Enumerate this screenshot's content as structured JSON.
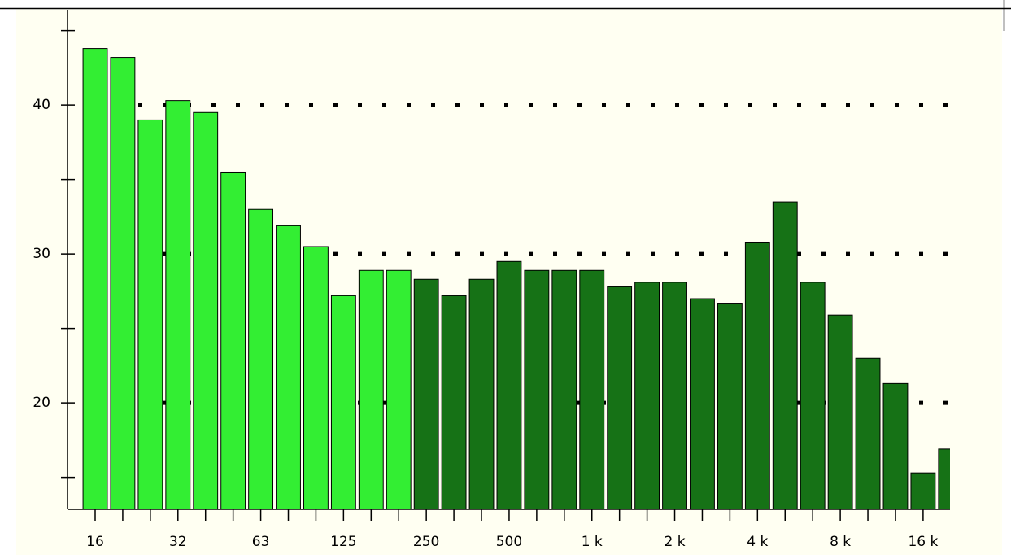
{
  "chart_data": {
    "type": "bar",
    "categories": [
      "16",
      null,
      null,
      "32",
      null,
      null,
      "63",
      null,
      null,
      "125",
      null,
      null,
      "250",
      null,
      null,
      "500",
      null,
      null,
      "1 k",
      null,
      null,
      "2 k",
      null,
      null,
      "4 k",
      null,
      null,
      "8 k",
      null,
      null,
      "16 k",
      null
    ],
    "values": [
      43.8,
      43.2,
      39.0,
      40.3,
      39.5,
      35.5,
      33.0,
      31.9,
      30.5,
      27.2,
      28.9,
      28.9,
      28.3,
      27.2,
      28.3,
      29.5,
      28.9,
      28.9,
      28.9,
      27.8,
      28.1,
      28.1,
      27.0,
      26.7,
      30.8,
      33.5,
      28.1,
      25.9,
      23.0,
      21.3,
      15.3,
      16.9
    ],
    "colors": [
      "#33ee33",
      "#33ee33",
      "#33ee33",
      "#33ee33",
      "#33ee33",
      "#33ee33",
      "#33ee33",
      "#33ee33",
      "#33ee33",
      "#33ee33",
      "#33ee33",
      "#33ee33",
      "#167216",
      "#167216",
      "#167216",
      "#167216",
      "#167216",
      "#167216",
      "#167216",
      "#167216",
      "#167216",
      "#167216",
      "#167216",
      "#167216",
      "#167216",
      "#167216",
      "#167216",
      "#167216",
      "#167216",
      "#167216",
      "#167216",
      "#167216"
    ],
    "ylim": [
      12.85,
      46.4
    ],
    "yticks": [
      20,
      30,
      40
    ],
    "minor_yticks": [
      15,
      25,
      35,
      45
    ],
    "grid": true
  }
}
